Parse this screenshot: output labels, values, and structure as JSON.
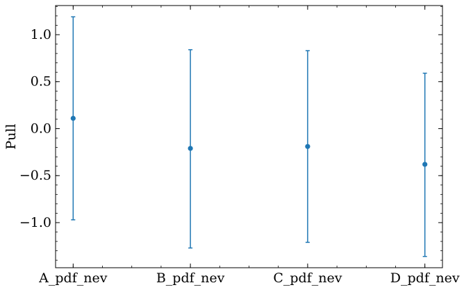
{
  "chart_data": {
    "type": "scatter",
    "title": "",
    "xlabel": "",
    "ylabel": "Pull",
    "categories": [
      "A_pdf_nev",
      "B_pdf_nev",
      "C_pdf_nev",
      "D_pdf_nev"
    ],
    "series": [
      {
        "name": "Pull",
        "values": [
          0.11,
          -0.21,
          -0.19,
          -0.38
        ],
        "err_low": [
          -0.97,
          -1.27,
          -1.21,
          -1.36
        ],
        "err_high": [
          1.19,
          0.84,
          0.83,
          0.59
        ]
      }
    ],
    "ylim": [
      -1.48,
      1.31
    ],
    "yticks": [
      -1.0,
      -0.5,
      0.0,
      0.5,
      1.0
    ],
    "ytick_labels": [
      "−1.0",
      "−0.5",
      "0.0",
      "0.5",
      "1.0"
    ],
    "yminor_step": 0.1,
    "xlim": [
      -0.15,
      3.15
    ],
    "grid": false,
    "legend": "none",
    "colors": {
      "series": "#1f77b4",
      "axes": "#000000"
    }
  }
}
